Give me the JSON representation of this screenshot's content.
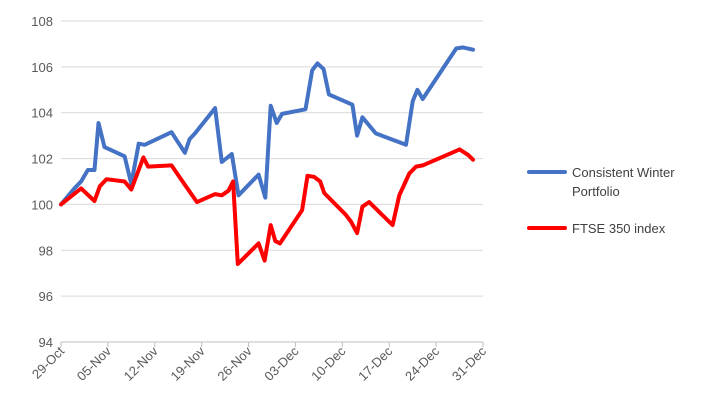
{
  "chart_data": {
    "type": "line",
    "title": "",
    "xlabel": "",
    "ylabel": "",
    "ylim": [
      94,
      108
    ],
    "y_ticks": [
      94,
      96,
      98,
      100,
      102,
      104,
      106,
      108
    ],
    "x_tick_labels": [
      "29-Oct",
      "05-Nov",
      "12-Nov",
      "19-Nov",
      "26-Nov",
      "03-Dec",
      "10-Dec",
      "17-Dec",
      "24-Dec",
      "31-Dec"
    ],
    "x_range_days": [
      0,
      63
    ],
    "grid": "horizontal",
    "legend_position": "right",
    "series": [
      {
        "name": "Consistent Winter Portfolio",
        "color": "#4472C4",
        "points": [
          [
            0,
            100.0
          ],
          [
            2,
            100.7
          ],
          [
            3,
            101.0
          ],
          [
            4,
            101.5
          ],
          [
            5,
            101.5
          ],
          [
            5.6,
            103.55
          ],
          [
            6.5,
            102.5
          ],
          [
            9.5,
            102.1
          ],
          [
            10.5,
            100.9
          ],
          [
            11.6,
            102.65
          ],
          [
            12.5,
            102.6
          ],
          [
            16.5,
            103.15
          ],
          [
            18.5,
            102.25
          ],
          [
            19.2,
            102.85
          ],
          [
            20,
            103.1
          ],
          [
            23,
            104.2
          ],
          [
            24,
            101.85
          ],
          [
            25.5,
            102.2
          ],
          [
            26.5,
            100.4
          ],
          [
            29.5,
            101.3
          ],
          [
            30.5,
            100.3
          ],
          [
            31.3,
            104.3
          ],
          [
            32.2,
            103.55
          ],
          [
            33,
            103.95
          ],
          [
            36.5,
            104.15
          ],
          [
            37.5,
            105.85
          ],
          [
            38.3,
            106.15
          ],
          [
            39.2,
            105.9
          ],
          [
            40,
            104.8
          ],
          [
            43.5,
            104.35
          ],
          [
            44.2,
            103.0
          ],
          [
            45,
            103.8
          ],
          [
            47,
            103.1
          ],
          [
            51.5,
            102.6
          ],
          [
            52.5,
            104.5
          ],
          [
            53.2,
            105.0
          ],
          [
            54,
            104.6
          ],
          [
            59,
            106.8
          ],
          [
            60,
            106.85
          ],
          [
            61.5,
            106.75
          ]
        ]
      },
      {
        "name": "FTSE 350 index",
        "color": "#FF0000",
        "points": [
          [
            0,
            100.0
          ],
          [
            3,
            100.7
          ],
          [
            5,
            100.15
          ],
          [
            5.8,
            100.8
          ],
          [
            6.8,
            101.1
          ],
          [
            9.5,
            101.0
          ],
          [
            10.5,
            100.65
          ],
          [
            12.3,
            102.05
          ],
          [
            13,
            101.65
          ],
          [
            16.5,
            101.7
          ],
          [
            18.5,
            100.85
          ],
          [
            20.3,
            100.1
          ],
          [
            23,
            100.45
          ],
          [
            24,
            100.4
          ],
          [
            25,
            100.6
          ],
          [
            25.7,
            101.0
          ],
          [
            26.4,
            97.4
          ],
          [
            29.5,
            98.3
          ],
          [
            30.4,
            97.55
          ],
          [
            31.3,
            99.1
          ],
          [
            32,
            98.4
          ],
          [
            32.7,
            98.3
          ],
          [
            36,
            99.75
          ],
          [
            36.8,
            101.25
          ],
          [
            37.8,
            101.2
          ],
          [
            38.7,
            101.0
          ],
          [
            39.3,
            100.5
          ],
          [
            42.5,
            99.55
          ],
          [
            43.3,
            99.25
          ],
          [
            44.2,
            98.75
          ],
          [
            45,
            99.9
          ],
          [
            46,
            100.1
          ],
          [
            49.5,
            99.1
          ],
          [
            50.5,
            100.4
          ],
          [
            52,
            101.35
          ],
          [
            53,
            101.65
          ],
          [
            54,
            101.7
          ],
          [
            59.5,
            102.4
          ],
          [
            60.8,
            102.15
          ],
          [
            61.5,
            101.95
          ]
        ]
      }
    ]
  }
}
